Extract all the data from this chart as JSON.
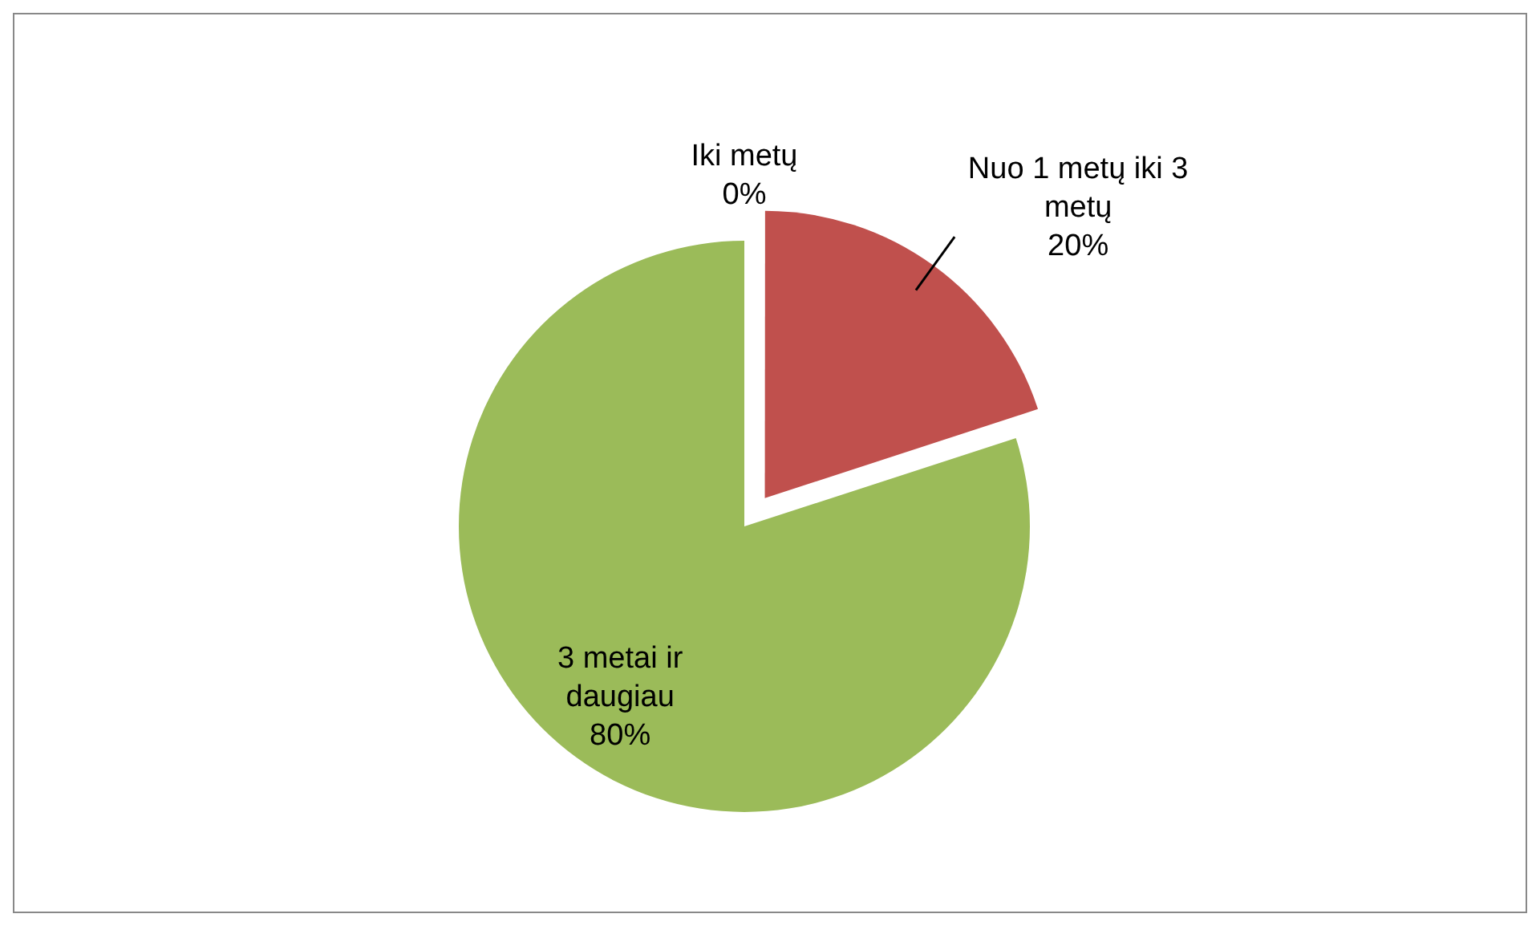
{
  "chart_data": {
    "type": "pie",
    "categories": [
      "Iki metų",
      "Nuo 1 metų iki 3 metų",
      "3 metai ir daugiau"
    ],
    "values": [
      0,
      20,
      80
    ],
    "colors": [
      "#4f81bd",
      "#c0504d",
      "#9bbb59"
    ],
    "value_labels": [
      "0%",
      "20%",
      "80%"
    ],
    "legend": false
  }
}
